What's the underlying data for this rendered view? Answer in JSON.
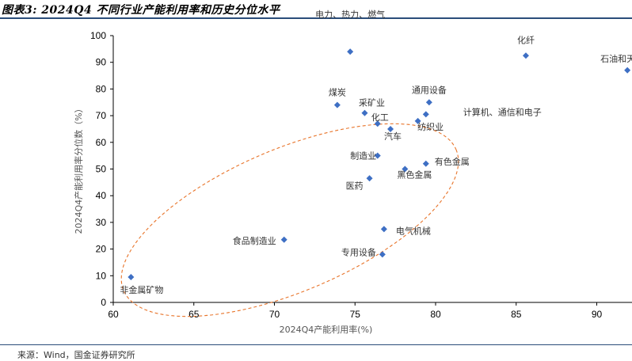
{
  "header": {
    "figure_title": "图表3: 2024Q4 不同行业产能利用率和历史分位水平"
  },
  "footer": {
    "source": "来源：Wind，国金证券研究所"
  },
  "chart_data": {
    "type": "scatter",
    "title": "",
    "xlabel": "2024Q4产能利用率(%)",
    "ylabel": "2024Q4产能利用率分位数（%）",
    "xlim": [
      60,
      92
    ],
    "ylim": [
      0,
      100
    ],
    "xticks": [
      60,
      65,
      70,
      75,
      80,
      85,
      90
    ],
    "yticks": [
      0,
      10,
      20,
      30,
      40,
      50,
      60,
      70,
      80,
      90,
      100
    ],
    "grid": false,
    "marker_color": "#3e6fc4",
    "ellipse_color": "#e8742a",
    "points": [
      {
        "label": "电力、热力、燃气",
        "x": 74.7,
        "y": 94
      },
      {
        "label": "化纤",
        "x": 85.6,
        "y": 92.5
      },
      {
        "label": "石油和天",
        "x": 91.9,
        "y": 87
      },
      {
        "label": "煤炭",
        "x": 73.9,
        "y": 74
      },
      {
        "label": "采矿业",
        "x": 75.6,
        "y": 71
      },
      {
        "label": "通用设备",
        "x": 79.6,
        "y": 75
      },
      {
        "label": "计算机、通信和电子",
        "x": 79.4,
        "y": 70.5
      },
      {
        "label": "化工",
        "x": 76.4,
        "y": 67
      },
      {
        "label": "纺织业",
        "x": 78.9,
        "y": 68
      },
      {
        "label": "汽车",
        "x": 77.2,
        "y": 65
      },
      {
        "label": "制造业",
        "x": 76.4,
        "y": 55
      },
      {
        "label": "有色金属",
        "x": 79.4,
        "y": 52
      },
      {
        "label": "黑色金属",
        "x": 78.1,
        "y": 50
      },
      {
        "label": "医药",
        "x": 75.9,
        "y": 46.5
      },
      {
        "label": "电气机械",
        "x": 76.8,
        "y": 27.5
      },
      {
        "label": "食品制造业",
        "x": 70.6,
        "y": 23.5
      },
      {
        "label": "专用设备",
        "x": 76.7,
        "y": 18
      },
      {
        "label": "非金属矿物",
        "x": 61.1,
        "y": 9.5
      }
    ]
  }
}
